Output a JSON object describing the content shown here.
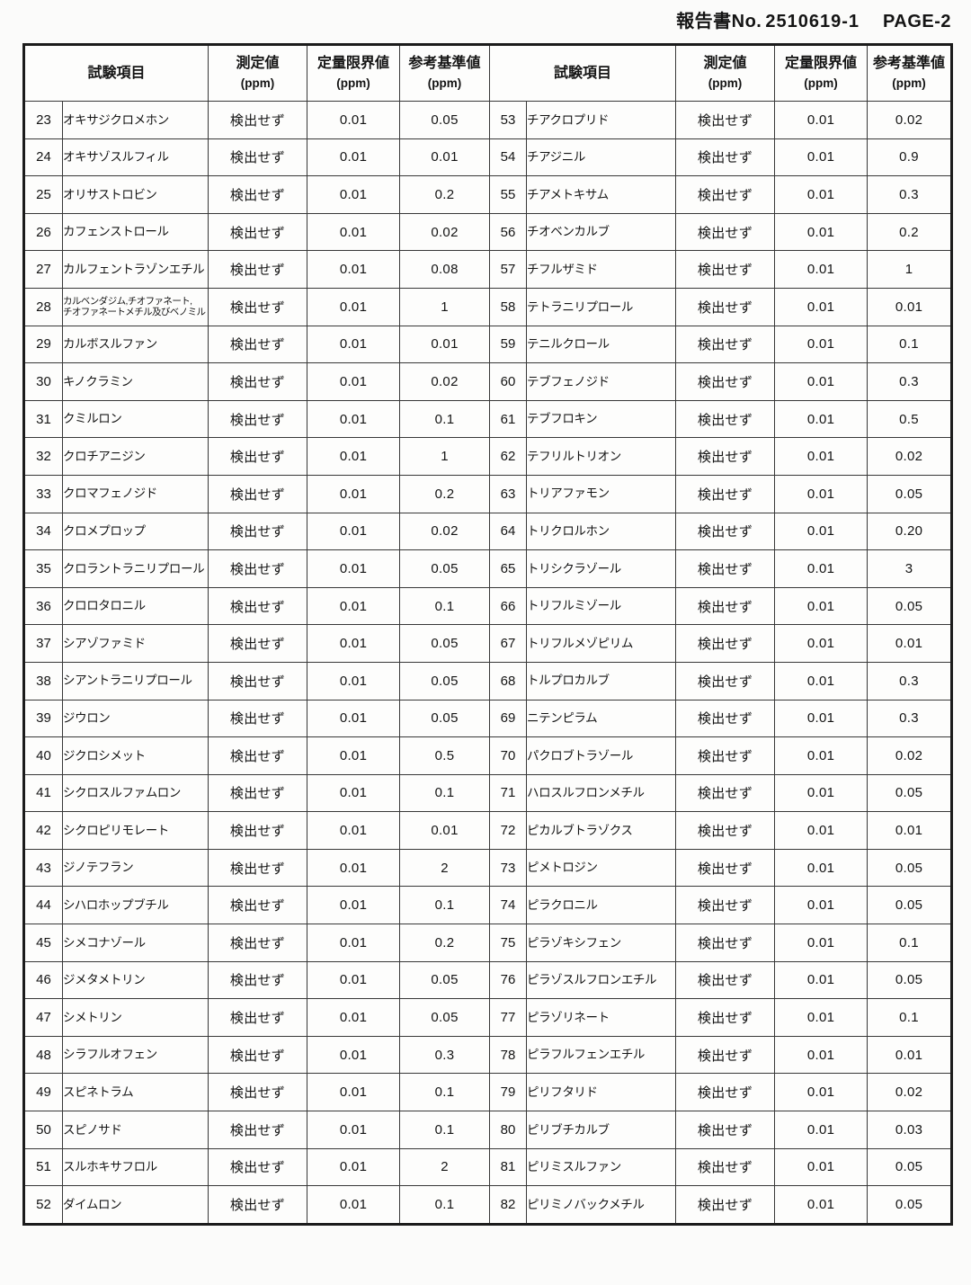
{
  "header": {
    "report_label": "報告書No.",
    "report_number": "2510619-1",
    "page": "PAGE-2"
  },
  "table": {
    "columns": {
      "item": "試験項目",
      "measured": "測定値",
      "limit": "定量限界値",
      "reference": "参考基準値",
      "unit": "(ppm)"
    },
    "not_detected_label": "検出せず",
    "left_rows": [
      {
        "no": "23",
        "name": "オキサジクロメホン",
        "measured": "検出せず",
        "limit": "0.01",
        "reference": "0.05"
      },
      {
        "no": "24",
        "name": "オキサゾスルフィル",
        "measured": "検出せず",
        "limit": "0.01",
        "reference": "0.01"
      },
      {
        "no": "25",
        "name": "オリサストロビン",
        "measured": "検出せず",
        "limit": "0.01",
        "reference": "0.2"
      },
      {
        "no": "26",
        "name": "カフェンストロール",
        "measured": "検出せず",
        "limit": "0.01",
        "reference": "0.02"
      },
      {
        "no": "27",
        "name": "カルフェントラゾンエチル",
        "measured": "検出せず",
        "limit": "0.01",
        "reference": "0.08"
      },
      {
        "no": "28",
        "name": "カルベンダジム,チオファネート,\nチオファネートメチル及びベノミル",
        "measured": "検出せず",
        "limit": "0.01",
        "reference": "1"
      },
      {
        "no": "29",
        "name": "カルボスルファン",
        "measured": "検出せず",
        "limit": "0.01",
        "reference": "0.01"
      },
      {
        "no": "30",
        "name": "キノクラミン",
        "measured": "検出せず",
        "limit": "0.01",
        "reference": "0.02"
      },
      {
        "no": "31",
        "name": "クミルロン",
        "measured": "検出せず",
        "limit": "0.01",
        "reference": "0.1"
      },
      {
        "no": "32",
        "name": "クロチアニジン",
        "measured": "検出せず",
        "limit": "0.01",
        "reference": "1"
      },
      {
        "no": "33",
        "name": "クロマフェノジド",
        "measured": "検出せず",
        "limit": "0.01",
        "reference": "0.2"
      },
      {
        "no": "34",
        "name": "クロメプロップ",
        "measured": "検出せず",
        "limit": "0.01",
        "reference": "0.02"
      },
      {
        "no": "35",
        "name": "クロラントラニリプロール",
        "measured": "検出せず",
        "limit": "0.01",
        "reference": "0.05"
      },
      {
        "no": "36",
        "name": "クロロタロニル",
        "measured": "検出せず",
        "limit": "0.01",
        "reference": "0.1"
      },
      {
        "no": "37",
        "name": "シアゾファミド",
        "measured": "検出せず",
        "limit": "0.01",
        "reference": "0.05"
      },
      {
        "no": "38",
        "name": "シアントラニリプロール",
        "measured": "検出せず",
        "limit": "0.01",
        "reference": "0.05"
      },
      {
        "no": "39",
        "name": "ジウロン",
        "measured": "検出せず",
        "limit": "0.01",
        "reference": "0.05"
      },
      {
        "no": "40",
        "name": "ジクロシメット",
        "measured": "検出せず",
        "limit": "0.01",
        "reference": "0.5"
      },
      {
        "no": "41",
        "name": "シクロスルファムロン",
        "measured": "検出せず",
        "limit": "0.01",
        "reference": "0.1"
      },
      {
        "no": "42",
        "name": "シクロピリモレート",
        "measured": "検出せず",
        "limit": "0.01",
        "reference": "0.01"
      },
      {
        "no": "43",
        "name": "ジノテフラン",
        "measured": "検出せず",
        "limit": "0.01",
        "reference": "2"
      },
      {
        "no": "44",
        "name": "シハロホップブチル",
        "measured": "検出せず",
        "limit": "0.01",
        "reference": "0.1"
      },
      {
        "no": "45",
        "name": "シメコナゾール",
        "measured": "検出せず",
        "limit": "0.01",
        "reference": "0.2"
      },
      {
        "no": "46",
        "name": "ジメタメトリン",
        "measured": "検出せず",
        "limit": "0.01",
        "reference": "0.05"
      },
      {
        "no": "47",
        "name": "シメトリン",
        "measured": "検出せず",
        "limit": "0.01",
        "reference": "0.05"
      },
      {
        "no": "48",
        "name": "シラフルオフェン",
        "measured": "検出せず",
        "limit": "0.01",
        "reference": "0.3"
      },
      {
        "no": "49",
        "name": "スピネトラム",
        "measured": "検出せず",
        "limit": "0.01",
        "reference": "0.1"
      },
      {
        "no": "50",
        "name": "スピノサド",
        "measured": "検出せず",
        "limit": "0.01",
        "reference": "0.1"
      },
      {
        "no": "51",
        "name": "スルホキサフロル",
        "measured": "検出せず",
        "limit": "0.01",
        "reference": "2"
      },
      {
        "no": "52",
        "name": "ダイムロン",
        "measured": "検出せず",
        "limit": "0.01",
        "reference": "0.1"
      }
    ],
    "right_rows": [
      {
        "no": "53",
        "name": "チアクロプリド",
        "measured": "検出せず",
        "limit": "0.01",
        "reference": "0.02"
      },
      {
        "no": "54",
        "name": "チアジニル",
        "measured": "検出せず",
        "limit": "0.01",
        "reference": "0.9"
      },
      {
        "no": "55",
        "name": "チアメトキサム",
        "measured": "検出せず",
        "limit": "0.01",
        "reference": "0.3"
      },
      {
        "no": "56",
        "name": "チオベンカルブ",
        "measured": "検出せず",
        "limit": "0.01",
        "reference": "0.2"
      },
      {
        "no": "57",
        "name": "チフルザミド",
        "measured": "検出せず",
        "limit": "0.01",
        "reference": "1"
      },
      {
        "no": "58",
        "name": "テトラニリプロール",
        "measured": "検出せず",
        "limit": "0.01",
        "reference": "0.01"
      },
      {
        "no": "59",
        "name": "テニルクロール",
        "measured": "検出せず",
        "limit": "0.01",
        "reference": "0.1"
      },
      {
        "no": "60",
        "name": "テブフェノジド",
        "measured": "検出せず",
        "limit": "0.01",
        "reference": "0.3"
      },
      {
        "no": "61",
        "name": "テブフロキン",
        "measured": "検出せず",
        "limit": "0.01",
        "reference": "0.5"
      },
      {
        "no": "62",
        "name": "テフリルトリオン",
        "measured": "検出せず",
        "limit": "0.01",
        "reference": "0.02"
      },
      {
        "no": "63",
        "name": "トリアファモン",
        "measured": "検出せず",
        "limit": "0.01",
        "reference": "0.05"
      },
      {
        "no": "64",
        "name": "トリクロルホン",
        "measured": "検出せず",
        "limit": "0.01",
        "reference": "0.20"
      },
      {
        "no": "65",
        "name": "トリシクラゾール",
        "measured": "検出せず",
        "limit": "0.01",
        "reference": "3"
      },
      {
        "no": "66",
        "name": "トリフルミゾール",
        "measured": "検出せず",
        "limit": "0.01",
        "reference": "0.05"
      },
      {
        "no": "67",
        "name": "トリフルメゾピリム",
        "measured": "検出せず",
        "limit": "0.01",
        "reference": "0.01"
      },
      {
        "no": "68",
        "name": "トルプロカルブ",
        "measured": "検出せず",
        "limit": "0.01",
        "reference": "0.3"
      },
      {
        "no": "69",
        "name": "ニテンピラム",
        "measured": "検出せず",
        "limit": "0.01",
        "reference": "0.3"
      },
      {
        "no": "70",
        "name": "パクロブトラゾール",
        "measured": "検出せず",
        "limit": "0.01",
        "reference": "0.02"
      },
      {
        "no": "71",
        "name": "ハロスルフロンメチル",
        "measured": "検出せず",
        "limit": "0.01",
        "reference": "0.05"
      },
      {
        "no": "72",
        "name": "ピカルブトラゾクス",
        "measured": "検出せず",
        "limit": "0.01",
        "reference": "0.01"
      },
      {
        "no": "73",
        "name": "ピメトロジン",
        "measured": "検出せず",
        "limit": "0.01",
        "reference": "0.05"
      },
      {
        "no": "74",
        "name": "ピラクロニル",
        "measured": "検出せず",
        "limit": "0.01",
        "reference": "0.05"
      },
      {
        "no": "75",
        "name": "ピラゾキシフェン",
        "measured": "検出せず",
        "limit": "0.01",
        "reference": "0.1"
      },
      {
        "no": "76",
        "name": "ピラゾスルフロンエチル",
        "measured": "検出せず",
        "limit": "0.01",
        "reference": "0.05"
      },
      {
        "no": "77",
        "name": "ピラゾリネート",
        "measured": "検出せず",
        "limit": "0.01",
        "reference": "0.1"
      },
      {
        "no": "78",
        "name": "ピラフルフェンエチル",
        "measured": "検出せず",
        "limit": "0.01",
        "reference": "0.01"
      },
      {
        "no": "79",
        "name": "ピリフタリド",
        "measured": "検出せず",
        "limit": "0.01",
        "reference": "0.02"
      },
      {
        "no": "80",
        "name": "ピリブチカルブ",
        "measured": "検出せず",
        "limit": "0.01",
        "reference": "0.03"
      },
      {
        "no": "81",
        "name": "ピリミスルファン",
        "measured": "検出せず",
        "limit": "0.01",
        "reference": "0.05"
      },
      {
        "no": "82",
        "name": "ピリミノバックメチル",
        "measured": "検出せず",
        "limit": "0.01",
        "reference": "0.05"
      }
    ]
  }
}
